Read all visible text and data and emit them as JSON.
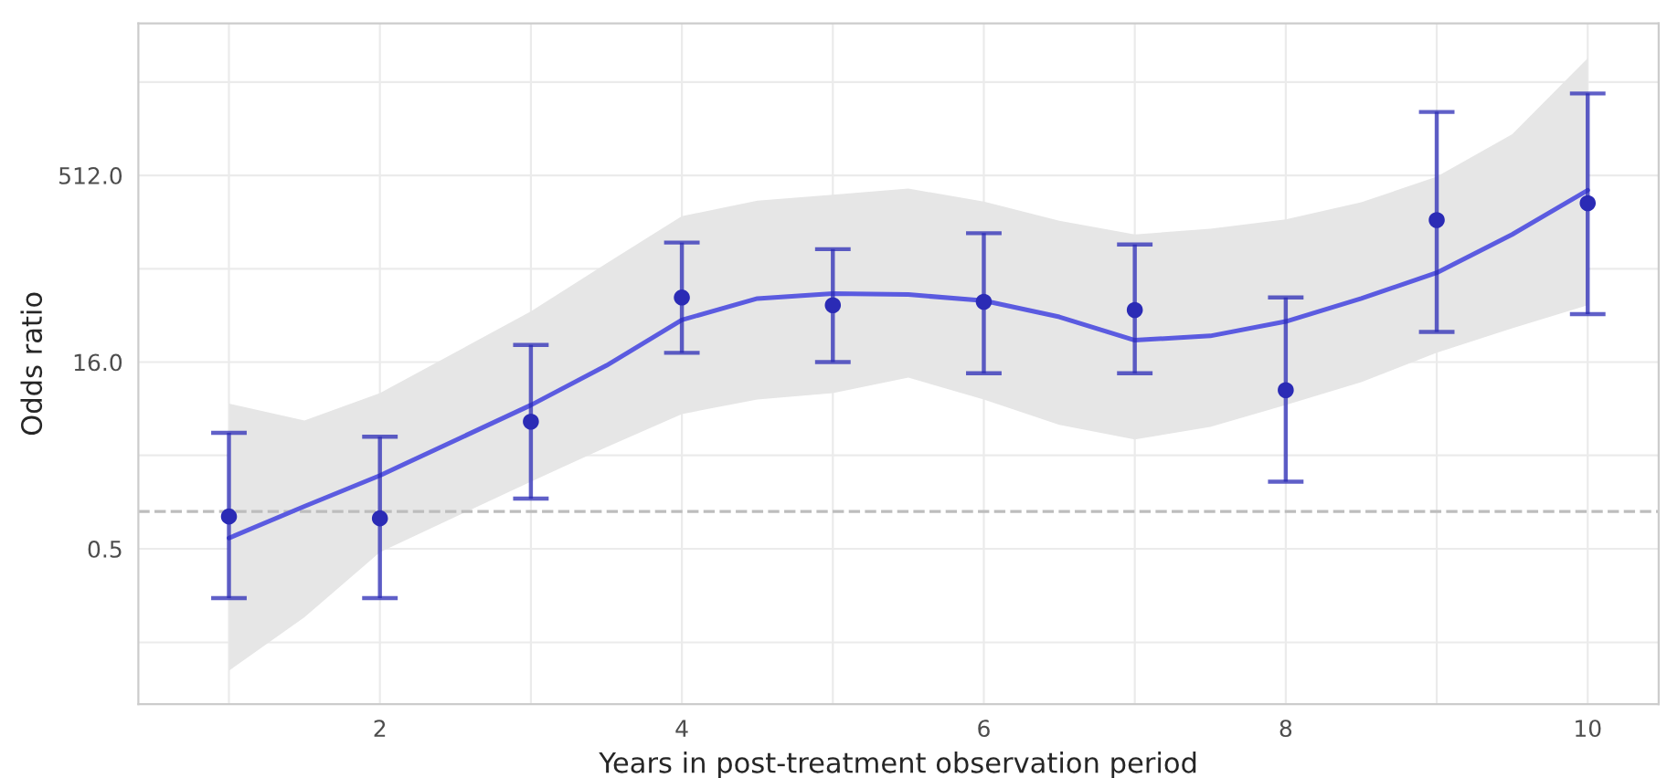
{
  "chart_data": {
    "type": "scatter",
    "xlabel": "Years in post-treatment observation period",
    "ylabel": "Odds ratio",
    "log": "y",
    "grid": true,
    "xlim": [
      0.4,
      10.47
    ],
    "ylim": [
      0.028,
      8600
    ],
    "xticks": [
      {
        "value": 1,
        "label": null
      },
      2,
      {
        "value": 3,
        "label": null
      },
      4,
      {
        "value": 5,
        "label": null
      },
      6,
      {
        "value": 7,
        "label": null
      },
      8,
      {
        "value": 9,
        "label": null
      },
      10
    ],
    "yticks": [
      {
        "value": 0.088,
        "label": null
      },
      0.5,
      {
        "value": 2.83,
        "label": null
      },
      {
        "value": 16,
        "label": "16.0"
      },
      {
        "value": 90.5,
        "label": null
      },
      {
        "value": 512,
        "label": "512.0"
      },
      {
        "value": 2896,
        "label": null
      }
    ],
    "ref_lines": [
      {
        "axis": "y",
        "value": 1,
        "label": null,
        "color": "#bdbdbd",
        "line_style": "dashed"
      }
    ],
    "series": [
      {
        "type": "line",
        "color": "#5b5be0",
        "x": [
          1,
          1.5,
          2,
          3,
          3.5,
          4,
          4.5,
          5,
          5.5,
          6,
          6.5,
          7,
          7.5,
          8,
          8.5,
          9,
          9.5,
          10
        ],
        "values": [
          0.61,
          1.1,
          1.95,
          7.2,
          15,
          35,
          52,
          57,
          56,
          50,
          37,
          24,
          26,
          34,
          52,
          84,
          171,
          388
        ],
        "lower": [
          0.052,
          0.14,
          0.47,
          1.74,
          3.3,
          6.1,
          8,
          9,
          12,
          8,
          5,
          3.8,
          4.8,
          7.2,
          11,
          19,
          30,
          46
        ],
        "upper": [
          7.4,
          5.4,
          9,
          41,
          100,
          240,
          320,
          357,
          400,
          315,
          220,
          171,
          190,
          226,
          310,
          500,
          1100,
          4500
        ]
      },
      {
        "color": "#2b2bb5",
        "marker": "circle",
        "x": [
          1,
          2,
          3,
          4,
          5,
          6,
          7,
          8,
          9,
          10
        ],
        "values": [
          0.91,
          0.88,
          5.3,
          53,
          46,
          49,
          42,
          9.5,
          223,
          305
        ],
        "errors": [
          [
            0.2,
            4.3
          ],
          [
            0.2,
            4.0
          ],
          [
            1.27,
            22
          ],
          [
            19,
            147
          ],
          [
            16,
            130
          ],
          [
            13,
            175
          ],
          [
            13,
            142
          ],
          [
            1.74,
            53
          ],
          [
            28,
            1660
          ],
          [
            39,
            2340
          ]
        ]
      }
    ]
  }
}
